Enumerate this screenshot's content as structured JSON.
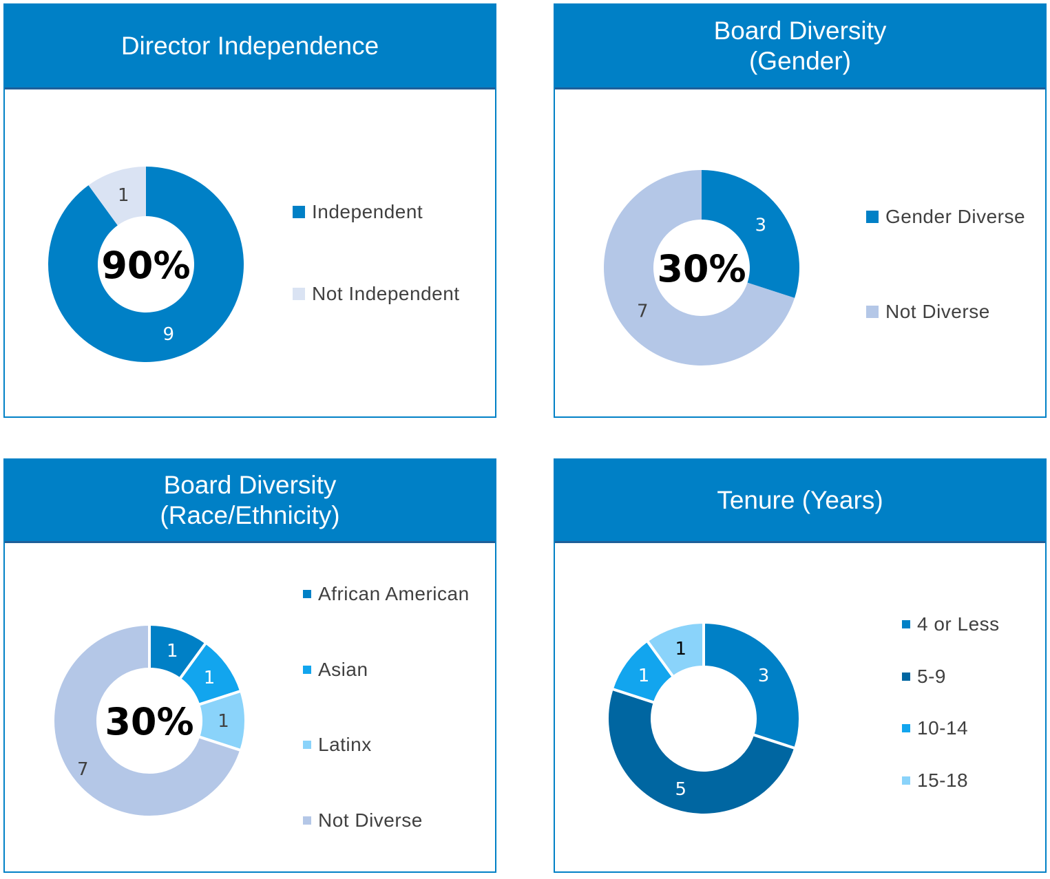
{
  "chart_data": [
    {
      "type": "pie",
      "title": "Director Independence",
      "center_label": "90%",
      "categories": [
        "Independent",
        "Not Independent"
      ],
      "values": [
        9,
        1
      ],
      "colors": [
        "#0080c6",
        "#dae3f3"
      ],
      "label_colors": [
        "#ffffff",
        "#404040"
      ],
      "legend": "right"
    },
    {
      "type": "pie",
      "title": "Board Diversity\n(Gender)",
      "title_lines": [
        "Board Diversity",
        "(Gender)"
      ],
      "center_label": "30%",
      "categories": [
        "Gender Diverse",
        "Not Diverse"
      ],
      "values": [
        3,
        7
      ],
      "colors": [
        "#0080c6",
        "#b4c7e7"
      ],
      "label_colors": [
        "#ffffff",
        "#404040"
      ],
      "legend": "right"
    },
    {
      "type": "pie",
      "title": "Board Diversity\n(Race/Ethnicity)",
      "title_lines": [
        "Board Diversity",
        "(Race/Ethnicity)"
      ],
      "center_label": "30%",
      "categories": [
        "African American",
        "Asian",
        "Latinx",
        "Not Diverse"
      ],
      "values": [
        1,
        1,
        1,
        7
      ],
      "colors": [
        "#0080c6",
        "#12a5ee",
        "#8ad3fa",
        "#b4c7e7"
      ],
      "label_colors": [
        "#ffffff",
        "#ffffff",
        "#404040",
        "#404040"
      ],
      "legend": "right"
    },
    {
      "type": "pie",
      "title": "Tenure (Years)",
      "center_label": "",
      "categories": [
        "4 or Less",
        "5-9",
        "10-14",
        "15-18"
      ],
      "values": [
        3,
        5,
        1,
        1
      ],
      "colors": [
        "#0080c6",
        "#0066a1",
        "#12a5ee",
        "#8ad3fa"
      ],
      "label_colors": [
        "#ffffff",
        "#ffffff",
        "#ffffff",
        "#000000"
      ],
      "legend": "right"
    }
  ]
}
